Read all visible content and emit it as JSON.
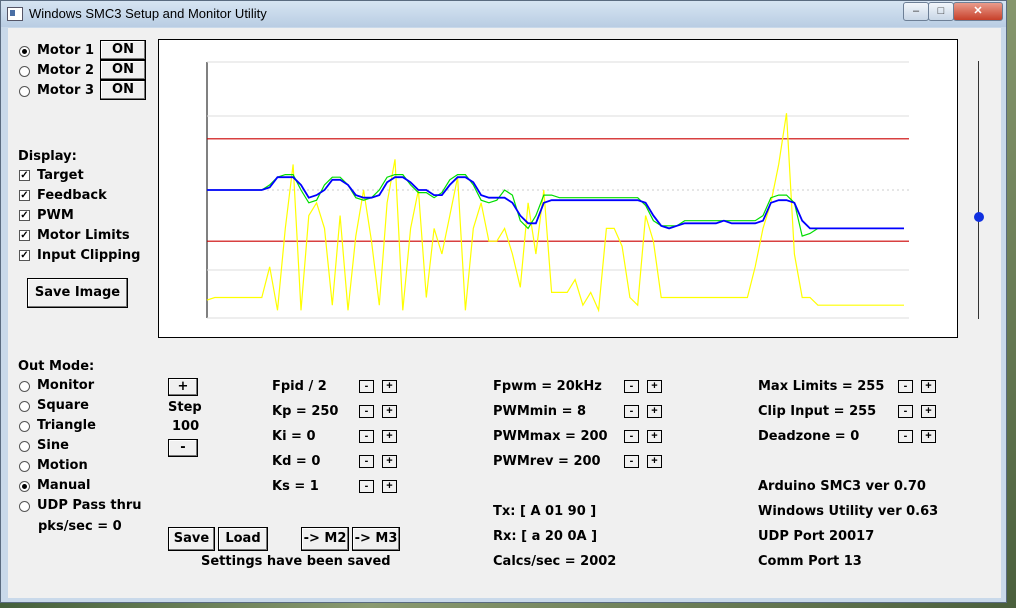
{
  "window": {
    "title": "Windows SMC3 Setup and Monitor Utility",
    "min": "–",
    "max": "□",
    "close": "✕"
  },
  "motors": [
    {
      "label": "Motor 1",
      "selected": true,
      "toggle": "ON"
    },
    {
      "label": "Motor 2",
      "selected": false,
      "toggle": "ON"
    },
    {
      "label": "Motor 3",
      "selected": false,
      "toggle": "ON"
    }
  ],
  "display": {
    "heading": "Display:",
    "options": [
      {
        "label": "Target",
        "checked": true
      },
      {
        "label": "Feedback",
        "checked": true
      },
      {
        "label": "PWM",
        "checked": true
      },
      {
        "label": "Motor Limits",
        "checked": true
      },
      {
        "label": "Input Clipping",
        "checked": true
      }
    ],
    "save_image": "Save Image"
  },
  "out_mode": {
    "heading": "Out Mode:",
    "options": [
      {
        "label": "Monitor",
        "selected": false
      },
      {
        "label": "Square",
        "selected": false
      },
      {
        "label": "Triangle",
        "selected": false
      },
      {
        "label": "Sine",
        "selected": false
      },
      {
        "label": "Motion",
        "selected": false
      },
      {
        "label": "Manual",
        "selected": true
      },
      {
        "label": "UDP Pass thru",
        "selected": false
      }
    ],
    "pks": "pks/sec = 0"
  },
  "step": {
    "plus": "+",
    "label": "Step",
    "value": "100",
    "minus": "-"
  },
  "params_pid": [
    {
      "label": "Fpid / 2"
    },
    {
      "label": "Kp = 250"
    },
    {
      "label": "Ki = 0"
    },
    {
      "label": "Kd = 0"
    },
    {
      "label": "Ks = 1"
    }
  ],
  "params_pwm": [
    {
      "label": "Fpwm = 20kHz"
    },
    {
      "label": "PWMmin = 8"
    },
    {
      "label": "PWMmax = 200"
    },
    {
      "label": "PWMrev = 200"
    }
  ],
  "params_limits": [
    {
      "label": "Max Limits = 255"
    },
    {
      "label": "Clip Input = 255"
    },
    {
      "label": "Deadzone = 0"
    }
  ],
  "stepper": {
    "minus": "-",
    "plus": "+"
  },
  "buttons": {
    "save": "Save",
    "load": "Load",
    "to_m2": "-> M2",
    "to_m3": "-> M3"
  },
  "status": {
    "saved": "Settings have been saved"
  },
  "comm": {
    "tx": "Tx: [ A 01 90 ]",
    "rx": "Rx: [ a 20 0A ]",
    "calcs": "Calcs/sec = 2002"
  },
  "info": {
    "arduino": "Arduino SMC3 ver 0.70",
    "utility": "Windows Utility ver 0.63",
    "udp": "UDP Port 20017",
    "comm": "Comm Port 13"
  },
  "colors": {
    "limit": "#cc0000",
    "target": "#0000ff",
    "feedback": "#00dd00",
    "pwm": "#ffff00"
  },
  "chart_data": {
    "type": "line",
    "limits": [
      0.3,
      0.7
    ],
    "series": [
      {
        "values": [
          0.5,
          0.5,
          0.5,
          0.5,
          0.5,
          0.5,
          0.5,
          0.5,
          0.51,
          0.55,
          0.55,
          0.55,
          0.52,
          0.47,
          0.48,
          0.5,
          0.54,
          0.54,
          0.52,
          0.48,
          0.47,
          0.47,
          0.48,
          0.53,
          0.55,
          0.55,
          0.53,
          0.5,
          0.5,
          0.48,
          0.48,
          0.52,
          0.55,
          0.55,
          0.53,
          0.48,
          0.47,
          0.47,
          0.47,
          0.45,
          0.4,
          0.37,
          0.37,
          0.45,
          0.46,
          0.46,
          0.46,
          0.46,
          0.46,
          0.46,
          0.46,
          0.46,
          0.46,
          0.46,
          0.46,
          0.46,
          0.45,
          0.4,
          0.36,
          0.35,
          0.36,
          0.37,
          0.37,
          0.37,
          0.37,
          0.37,
          0.38,
          0.37,
          0.37,
          0.37,
          0.37,
          0.38,
          0.45,
          0.46,
          0.46,
          0.45,
          0.38,
          0.35,
          0.35,
          0.35,
          0.35,
          0.35,
          0.35,
          0.35,
          0.35,
          0.35,
          0.35,
          0.35,
          0.35,
          0.35
        ]
      },
      {
        "values": [
          0.5,
          0.5,
          0.5,
          0.5,
          0.5,
          0.5,
          0.5,
          0.5,
          0.52,
          0.55,
          0.56,
          0.56,
          0.5,
          0.45,
          0.46,
          0.52,
          0.55,
          0.55,
          0.52,
          0.47,
          0.46,
          0.47,
          0.5,
          0.55,
          0.56,
          0.56,
          0.52,
          0.49,
          0.49,
          0.47,
          0.49,
          0.54,
          0.56,
          0.56,
          0.52,
          0.46,
          0.45,
          0.46,
          0.5,
          0.48,
          0.38,
          0.35,
          0.4,
          0.48,
          0.48,
          0.47,
          0.47,
          0.47,
          0.47,
          0.47,
          0.47,
          0.47,
          0.47,
          0.47,
          0.47,
          0.47,
          0.44,
          0.38,
          0.36,
          0.36,
          0.36,
          0.38,
          0.38,
          0.38,
          0.38,
          0.38,
          0.38,
          0.38,
          0.38,
          0.38,
          0.38,
          0.4,
          0.47,
          0.48,
          0.48,
          0.45,
          0.32,
          0.33,
          0.35,
          0.35,
          0.35,
          0.35,
          0.35,
          0.35,
          0.35,
          0.35,
          0.35,
          0.35,
          0.35,
          0.35
        ]
      },
      {
        "values": [
          0.07,
          0.08,
          0.08,
          0.08,
          0.08,
          0.08,
          0.08,
          0.08,
          0.2,
          0.03,
          0.35,
          0.6,
          0.03,
          0.4,
          0.45,
          0.35,
          0.05,
          0.4,
          0.03,
          0.32,
          0.5,
          0.3,
          0.05,
          0.45,
          0.62,
          0.03,
          0.35,
          0.5,
          0.08,
          0.35,
          0.25,
          0.4,
          0.55,
          0.03,
          0.35,
          0.45,
          0.3,
          0.3,
          0.35,
          0.25,
          0.12,
          0.45,
          0.25,
          0.5,
          0.1,
          0.1,
          0.1,
          0.15,
          0.05,
          0.1,
          0.03,
          0.35,
          0.35,
          0.28,
          0.08,
          0.05,
          0.4,
          0.3,
          0.08,
          0.08,
          0.08,
          0.08,
          0.08,
          0.08,
          0.08,
          0.08,
          0.08,
          0.08,
          0.08,
          0.08,
          0.2,
          0.35,
          0.45,
          0.6,
          0.8,
          0.25,
          0.08,
          0.08,
          0.05,
          0.05,
          0.05,
          0.05,
          0.05,
          0.05,
          0.05,
          0.05,
          0.05,
          0.05,
          0.05,
          0.05
        ]
      }
    ]
  }
}
